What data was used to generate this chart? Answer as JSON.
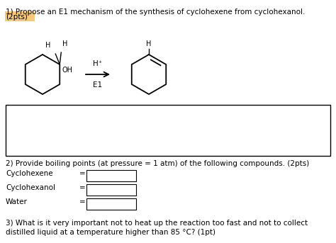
{
  "title_line1": "1) Propose an E1 mechanism of the synthesis of cyclohexene from cyclohexanol.",
  "title_line2": "(2pts)",
  "title_line2_highlight": "#f5c87a",
  "section2_title": "2) Provide boiling points (at pressure = 1 atm) of the following compounds. (2pts)",
  "compounds": [
    "Cyclohexene",
    "Cyclohexanol",
    "Water"
  ],
  "section3_text_line1": "3) What is it very important not to heat up the reaction too fast and not to collect",
  "section3_text_line2": "distilled liquid at a temperature higher than 85 °C? (1pt)",
  "bg_color": "#ffffff",
  "text_color": "#000000"
}
